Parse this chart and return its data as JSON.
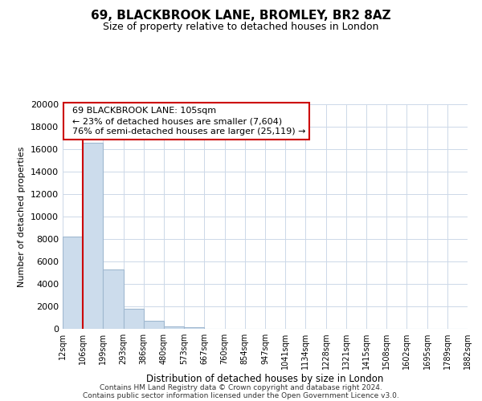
{
  "title": "69, BLACKBROOK LANE, BROMLEY, BR2 8AZ",
  "subtitle": "Size of property relative to detached houses in London",
  "xlabel": "Distribution of detached houses by size in London",
  "ylabel": "Number of detached properties",
  "bar_values": [
    8200,
    16600,
    5300,
    1800,
    750,
    250,
    150,
    0,
    0,
    0,
    0,
    0,
    0,
    0,
    0,
    0,
    0,
    0,
    0,
    0
  ],
  "bar_color": "#ccdcec",
  "bar_edge_color": "#a0b8d0",
  "tick_labels": [
    "12sqm",
    "106sqm",
    "199sqm",
    "293sqm",
    "386sqm",
    "480sqm",
    "573sqm",
    "667sqm",
    "760sqm",
    "854sqm",
    "947sqm",
    "1041sqm",
    "1134sqm",
    "1228sqm",
    "1321sqm",
    "1415sqm",
    "1508sqm",
    "1602sqm",
    "1695sqm",
    "1789sqm",
    "1882sqm"
  ],
  "ylim": [
    0,
    20000
  ],
  "yticks": [
    0,
    2000,
    4000,
    6000,
    8000,
    10000,
    12000,
    14000,
    16000,
    18000,
    20000
  ],
  "annotation_line1": "69 BLACKBROOK LANE: 105sqm",
  "annotation_line2": "← 23% of detached houses are smaller (7,604)",
  "annotation_line3": "76% of semi-detached houses are larger (25,119) →",
  "red_line_x": 1,
  "footnote1": "Contains HM Land Registry data © Crown copyright and database right 2024.",
  "footnote2": "Contains public sector information licensed under the Open Government Licence v3.0.",
  "bg_color": "#ffffff",
  "grid_color": "#ccd8e8",
  "annotation_box_edge_color": "#cc0000"
}
